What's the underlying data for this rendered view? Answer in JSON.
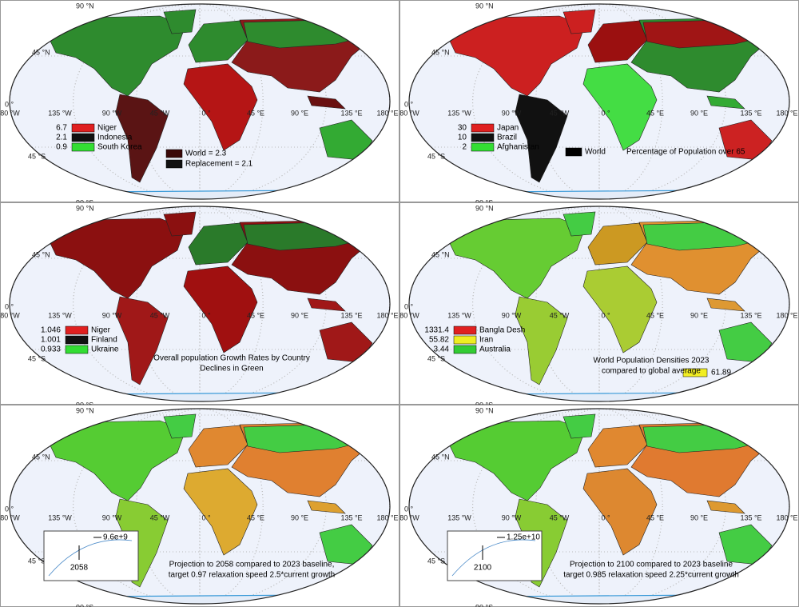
{
  "graticule": {
    "lat": [
      "90 °N",
      "45 °N",
      "0 °",
      "45 °S",
      "90 °S"
    ],
    "lon": [
      "180 °W",
      "135 °W",
      "90 °W",
      "45 °W",
      "0 °",
      "45 °E",
      "90 °E",
      "135 °E",
      "180 °E"
    ]
  },
  "panels": [
    {
      "legend": [
        {
          "value": 6.7,
          "label": "Niger",
          "color": "#e02020"
        },
        {
          "value": 2.1,
          "label": "Indonesia",
          "color": "#111111"
        },
        {
          "value": 0.9,
          "label": "South Korea",
          "color": "#33dd33"
        }
      ],
      "notes": [
        {
          "label": "World = 2.3",
          "color": "#3a0808"
        },
        {
          "label": "Replacement = 2.1",
          "color": "#111111"
        }
      ],
      "caption": []
    },
    {
      "legend": [
        {
          "value": 30,
          "label": "Japan",
          "color": "#e02020"
        },
        {
          "value": 10,
          "label": "Brazil",
          "color": "#111111"
        },
        {
          "value": 2,
          "label": "Afghanistan",
          "color": "#33dd33"
        }
      ],
      "notes": [
        {
          "label": "World",
          "color": "#000000"
        }
      ],
      "caption": [
        "Percentage of Population over 65"
      ]
    },
    {
      "legend": [
        {
          "value": 1.046,
          "label": "Niger",
          "color": "#e02020"
        },
        {
          "value": 1.001,
          "label": "Finland",
          "color": "#111111"
        },
        {
          "value": 0.933,
          "label": "Ukraine",
          "color": "#33dd33"
        }
      ],
      "notes": [],
      "caption": [
        "Overall population Growth Rates by Country",
        "Declines in Green"
      ]
    },
    {
      "legend": [
        {
          "value": 1331.4,
          "label": "Bangla Desh",
          "color": "#e02020"
        },
        {
          "value": 55.82,
          "label": "Iran",
          "color": "#eeee22"
        },
        {
          "value": 3.44,
          "label": "Australia",
          "color": "#33cc33"
        }
      ],
      "notes": [
        {
          "value": 61.89,
          "color": "#f2ee22"
        }
      ],
      "caption": [
        "World Population Densities 2023",
        "compared to global average"
      ]
    },
    {
      "legend": [],
      "notes": [],
      "inset": {
        "peak": "9.6e+9",
        "year": 2058
      },
      "caption": [
        "Projection to 2058 compared to 2023 baseline,",
        "target 0.97 relaxation speed 2.5*current growth"
      ]
    },
    {
      "legend": [],
      "notes": [],
      "inset": {
        "peak": "1.25e+10",
        "year": 2100
      },
      "caption": [
        "Projection to 2100 compared to 2023 baseline",
        "target 0.985 relaxation speed 2.25*current growth"
      ]
    }
  ]
}
